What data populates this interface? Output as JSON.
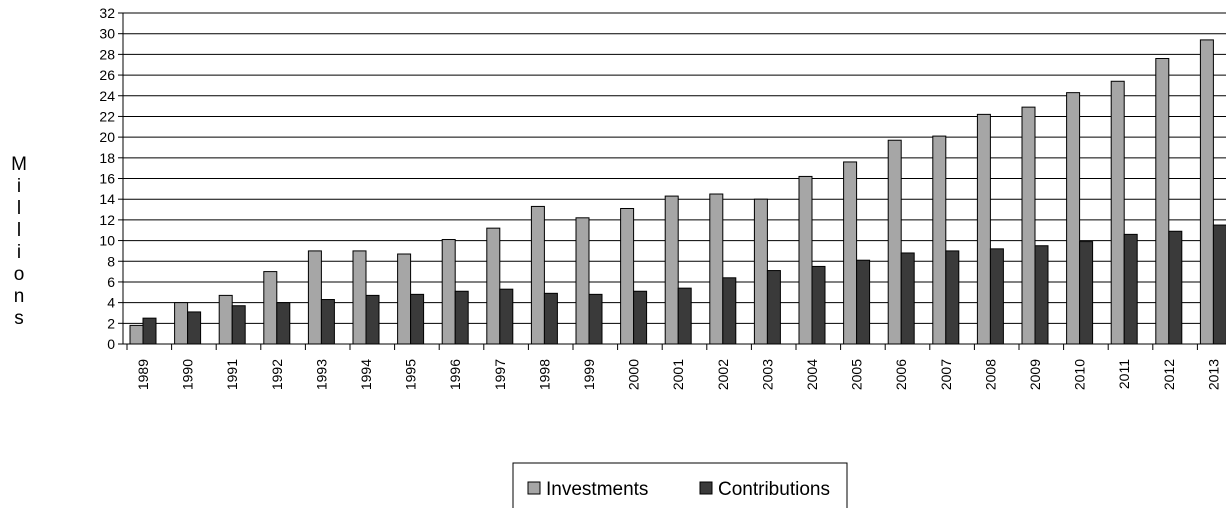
{
  "chart_data": {
    "type": "bar",
    "ylabel": "Millions",
    "xlabel": "",
    "ylim": [
      0,
      32
    ],
    "ytick_step": 2,
    "yticks": [
      "0",
      "2",
      "4",
      "6",
      "8",
      "10",
      "12",
      "14",
      "16",
      "18",
      "20",
      "22",
      "24",
      "26",
      "28",
      "30",
      "32"
    ],
    "grid": true,
    "legend_position": "bottom",
    "categories": [
      "1989",
      "1990",
      "1991",
      "1992",
      "1993",
      "1994",
      "1995",
      "1996",
      "1997",
      "1998",
      "1999",
      "2000",
      "2001",
      "2002",
      "2003",
      "2004",
      "2005",
      "2006",
      "2007",
      "2008",
      "2009",
      "2010",
      "2011",
      "2012",
      "2013"
    ],
    "series": [
      {
        "name": "Investments",
        "color": "#a6a6a6",
        "values": [
          1.8,
          4.0,
          4.7,
          7.0,
          9.0,
          9.0,
          8.7,
          10.1,
          11.2,
          13.3,
          12.2,
          13.1,
          14.3,
          14.5,
          14.0,
          16.2,
          17.6,
          19.7,
          20.1,
          22.2,
          22.9,
          24.3,
          25.4,
          27.6,
          29.4
        ]
      },
      {
        "name": "Contributions",
        "color": "#3a3a3a",
        "values": [
          2.5,
          3.1,
          3.7,
          4.0,
          4.3,
          4.7,
          4.8,
          5.1,
          5.3,
          4.9,
          4.8,
          5.1,
          5.4,
          6.4,
          7.1,
          7.5,
          8.1,
          8.8,
          9.0,
          9.2,
          9.5,
          9.9,
          10.6,
          10.9,
          11.5
        ]
      }
    ]
  }
}
